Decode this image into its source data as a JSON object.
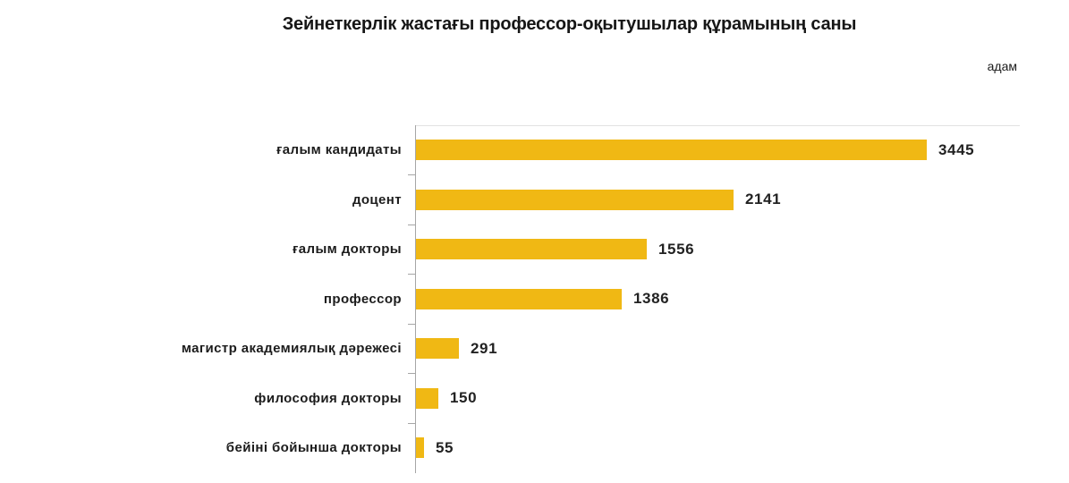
{
  "chart_data": {
    "type": "bar",
    "orientation": "horizontal",
    "title": "Зейнеткерлік жастағы профессор-оқытушылар құрамының саны",
    "unit_label": "адам",
    "categories": [
      "ғалым кандидаты",
      "доцент",
      "ғалым докторы",
      "профессор",
      "магистр академиялық дәрежесі",
      "философия докторы",
      "бейіні бойынша докторы"
    ],
    "values": [
      3445,
      2141,
      1556,
      1386,
      291,
      150,
      55
    ],
    "xlabel": "",
    "ylabel": "",
    "xlim": [
      0,
      3600
    ],
    "grid": false,
    "legend": "none",
    "value_labels": true,
    "bar_color": "#f0b814",
    "axis_color": "#a6a6a6",
    "text_color": "#1c1c1c"
  }
}
